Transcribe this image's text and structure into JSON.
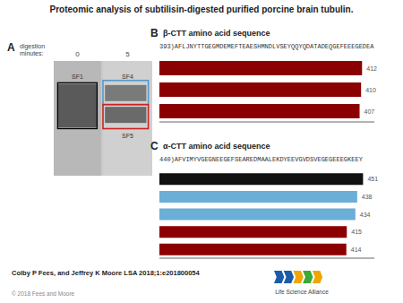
{
  "title": "Proteomic analysis of subtilisin-digested purified porcine brain tubulin.",
  "annotations": [
    "A",
    "digestion\nminutes:",
    "0",
    "5",
    "SF1",
    "SF4",
    "SF5",
    "Colby P Fees, and Jeffrey K Moore LSA 2018;1:e201800054",
    "© 2018 Fees and Moore",
    "Life Science Alliance"
  ],
  "chart_data": [
    {
      "type": "bar",
      "orientation": "horizontal",
      "title": "β-CTT amino acid sequence",
      "subtitle": "393)AFLJNYTTGEGMDEMEFTEAESHMNDLVSEYQQYQDATADEQGEFEEEGEDEA",
      "annotations": [
        "B"
      ],
      "categories": [
        "412",
        "410",
        "407"
      ],
      "values": [
        412,
        410,
        407
      ],
      "colors": [
        "#8B0000",
        "#8B0000",
        "#8B0000"
      ],
      "xlim": [
        0,
        437
      ],
      "data_labels": true,
      "tick_labels": false,
      "grid": false
    },
    {
      "type": "bar",
      "orientation": "horizontal",
      "title": "α-CTT amino acid sequence",
      "subtitle": "440)AFVIMYVGEGNEEGEFSEAREDMAALEKDYEEVGVDSVEGEGEEEGKEEY",
      "annotations": [
        "C"
      ],
      "categories": [
        "451",
        "438",
        "434",
        "415",
        "414"
      ],
      "values": [
        451,
        438,
        434,
        415,
        414
      ],
      "colors": [
        "#111111",
        "#6baed6",
        "#6baed6",
        "#8B0000",
        "#8B0000"
      ],
      "xlim": [
        0,
        476
      ],
      "data_labels": true,
      "tick_labels": false,
      "grid": false
    }
  ]
}
